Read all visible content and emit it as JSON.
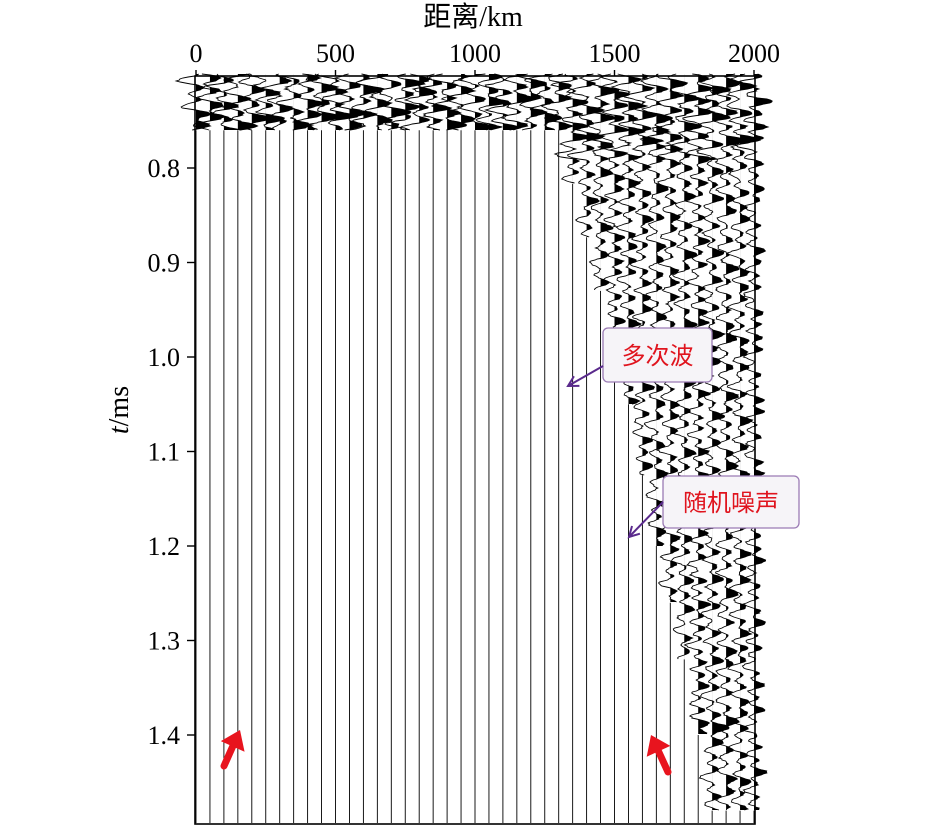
{
  "chart_data": {
    "type": "seismic-wiggle",
    "xlabel": "距离/km",
    "ylabel_italic": "t",
    "ylabel_unit": "/ms",
    "x_ticks": [
      "0",
      "500",
      "1000",
      "1500",
      "2000"
    ],
    "x_tick_values": [
      0,
      500,
      1000,
      1500,
      2000
    ],
    "xlim": [
      0,
      2000
    ],
    "y_ticks": [
      "0.8",
      "0.9",
      "1.0",
      "1.1",
      "1.2",
      "1.3",
      "1.4"
    ],
    "y_tick_values": [
      0.8,
      0.9,
      1.0,
      1.1,
      1.2,
      1.3,
      1.4
    ],
    "ylim": [
      0.7,
      1.49
    ],
    "trace_count": 41,
    "trace_spacing": 50,
    "data_extent_points": [
      {
        "x": 1300,
        "t": 0.76
      },
      {
        "x": 1450,
        "t": 0.93
      },
      {
        "x": 1550,
        "t": 1.05
      },
      {
        "x": 1650,
        "t": 1.2
      },
      {
        "x": 1750,
        "t": 1.32
      },
      {
        "x": 1850,
        "t": 1.48
      }
    ],
    "reflector_event": {
      "t": 1.39,
      "x_start": 100,
      "x_end": 1850
    },
    "annotations": [
      {
        "text": "多次波",
        "x": 1330,
        "t": 1.03,
        "color": "#e0141e"
      },
      {
        "text": "随机噪声",
        "x": 1550,
        "t": 1.2,
        "color": "#e0141e"
      }
    ],
    "marker_arrows": [
      {
        "x": 120,
        "t": 1.42,
        "color": "#e8141e"
      },
      {
        "x": 1620,
        "t": 1.42,
        "color": "#e8141e"
      }
    ],
    "colors": {
      "trace": "#000000",
      "callout_border": "#9b7bb5",
      "callout_arrow": "#5a2a8c",
      "marker": "#e8141e"
    }
  }
}
